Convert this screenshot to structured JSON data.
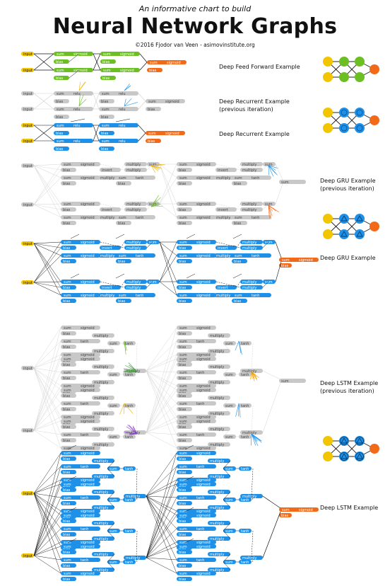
{
  "header": {
    "subtitle": "An informative chart to build",
    "title": "Neural Network Graphs",
    "credit": "©2016 Fjodor van Veen - asimovinstitute.org"
  },
  "labels": {
    "ff": "Deep Feed Forward Example",
    "rec_prev_1": "Deep Recurrent Example",
    "rec_prev_2": "(previous iteration)",
    "rec": "Deep Recurrent Example",
    "gru_prev_1": "Deep GRU Example",
    "gru_prev_2": "(previous iteration)",
    "gru": "Deep GRU Example",
    "lstm_prev_1": "Deep LSTM Example",
    "lstm_prev_2": "(previous iteration)",
    "lstm": "Deep LSTM Example"
  },
  "node_text": {
    "input": "input",
    "sum": "sum",
    "sigmoid": "sigmoid",
    "bias": "bias",
    "relu": "relu",
    "tanh": "tanh",
    "multiply": "multiply",
    "invert": "invert"
  },
  "colors": {
    "input": "#f2c500",
    "hidden_green": "#6bbf23",
    "output": "#f26a18",
    "recurrent_blue": "#1e90e8",
    "memory_cell_blue": "#1e90e8",
    "inactive_gray": "#c8c8c8"
  },
  "icons": {
    "ff_network": "feed-forward-network-icon",
    "rec_network": "recurrent-network-icon",
    "gru_network": "gru-network-icon",
    "lstm_network": "lstm-network-icon"
  }
}
